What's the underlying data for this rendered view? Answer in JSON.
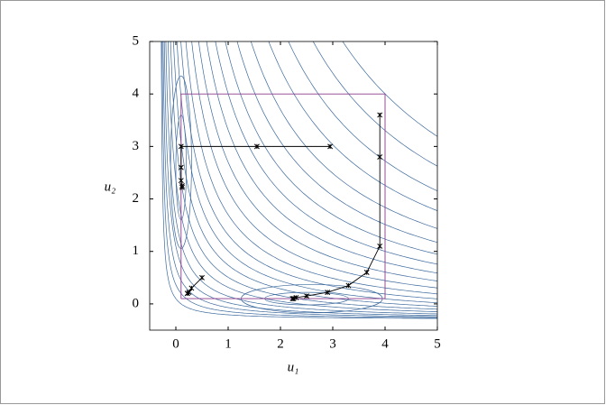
{
  "chart_data": {
    "type": "line",
    "xlabel": "u₁",
    "ylabel": "u₂",
    "xlim": [
      -0.5,
      5
    ],
    "ylim": [
      -0.5,
      5
    ],
    "xticks": [
      0,
      1,
      2,
      3,
      4,
      5
    ],
    "yticks": [
      0,
      1,
      2,
      3,
      4,
      5
    ],
    "contour_color": "#3d6a9e",
    "series": [
      {
        "color": "#8b3a8b",
        "marker": "none",
        "x": [
          0.1,
          4,
          4,
          0.1,
          0.1
        ],
        "y": [
          0.1,
          0.1,
          4,
          4,
          0.1
        ]
      },
      {
        "color": "#000000",
        "marker": "x",
        "x": [
          2.95,
          1.55,
          0.1,
          0.1,
          0.1,
          0.12,
          0.12
        ],
        "y": [
          3,
          3,
          3,
          2.6,
          2.35,
          2.25,
          2.22
        ]
      },
      {
        "color": "#000000",
        "marker": "x",
        "x": [
          3.9,
          3.9,
          3.9,
          3.65,
          3.3,
          2.9,
          2.5,
          2.3,
          2.25,
          2.23
        ],
        "y": [
          3.6,
          2.8,
          1.1,
          0.6,
          0.35,
          0.22,
          0.15,
          0.12,
          0.1,
          0.1
        ]
      },
      {
        "color": "#000000",
        "marker": "x",
        "x": [
          0.5,
          0.3,
          0.25,
          0.22,
          0.22
        ],
        "y": [
          0.5,
          0.3,
          0.22,
          0.2,
          0.2
        ]
      }
    ]
  }
}
